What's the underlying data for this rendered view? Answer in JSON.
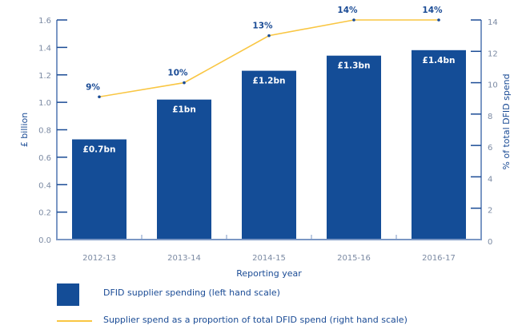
{
  "chart_data": {
    "type": "bar+line",
    "title": "",
    "categories": [
      "2012-13",
      "2013-14",
      "2014-15",
      "2015-16",
      "2016-17"
    ],
    "xlabel": "Reporting year",
    "series": [
      {
        "name": "DFID supplier spending (left hand scale)",
        "type": "bar",
        "axis": "left",
        "color": "#144d97",
        "values": [
          0.73,
          1.02,
          1.23,
          1.34,
          1.38
        ],
        "labels": [
          "£0.7bn",
          "£1bn",
          "£1.2bn",
          "£1.3bn",
          "£1.4bn"
        ]
      },
      {
        "name": "Supplier spend as a proportion of total DFID spend (right hand scale)",
        "type": "line",
        "axis": "right",
        "color": "#f9c642",
        "marker_color": "#1a4b95",
        "values": [
          9.1,
          10.0,
          13.0,
          14.0,
          14.0
        ],
        "labels": [
          "9%",
          "10%",
          "13%",
          "14%",
          "14%"
        ]
      }
    ],
    "left_axis": {
      "label": "£ billion",
      "range": [
        0,
        1.6
      ],
      "ticks": [
        "0.0",
        "0.2",
        "0.4",
        "0.6",
        "0.8",
        "1.0",
        "1.2",
        "1.4",
        "1.6"
      ]
    },
    "right_axis": {
      "label": "% of total DFID spend",
      "range": [
        0,
        14
      ],
      "ticks": [
        "0",
        "2",
        "4",
        "6",
        "8",
        "10",
        "12",
        "14"
      ]
    },
    "grid": false,
    "legend_position": "bottom"
  },
  "legend": {
    "bar_label": "DFID supplier spending (left hand scale)",
    "line_label": "Supplier spend as a proportion of total DFID spend (right hand scale)"
  },
  "colors": {
    "bar": "#144d97",
    "line": "#f9c642",
    "axis": "#7b97c4",
    "text": "#1a4b95"
  }
}
